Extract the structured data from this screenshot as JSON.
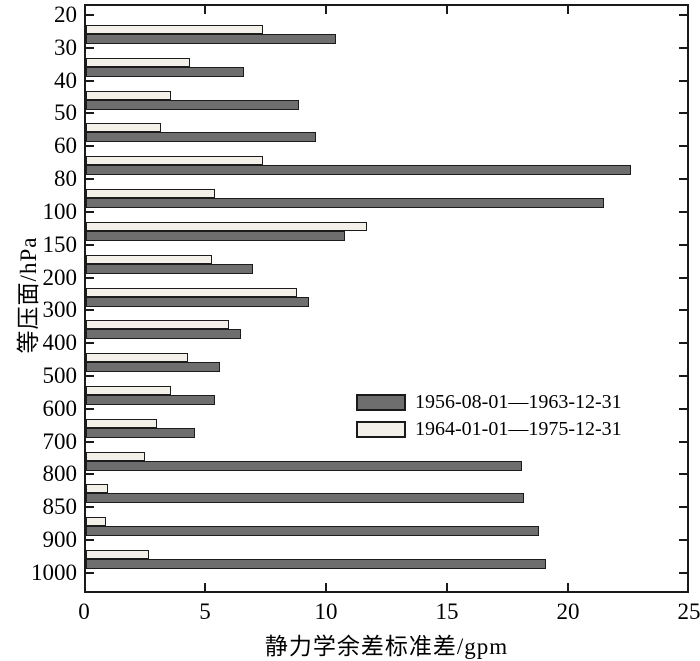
{
  "figure": {
    "background": "#ffffff",
    "frame_color": "#1a1a1a",
    "text_color": "#000000"
  },
  "chart_data": {
    "type": "bar",
    "orientation": "horizontal",
    "title": "",
    "xlabel": "静力学余差标准差/gpm",
    "ylabel": "等压面/hPa",
    "xlim": [
      0,
      25
    ],
    "x_tick_labels": [
      "0",
      "5",
      "10",
      "15",
      "20",
      "25"
    ],
    "x_tick_values": [
      0,
      5,
      10,
      15,
      20,
      25
    ],
    "y_tick_labels": [
      "20",
      "30",
      "40",
      "50",
      "60",
      "80",
      "100",
      "150",
      "200",
      "300",
      "400",
      "500",
      "600",
      "700",
      "800",
      "850",
      "900",
      "1000"
    ],
    "bar_placement": "between-ticks",
    "grid": false,
    "legend_position": "inside-center-right",
    "series": [
      {
        "name": "1956-08-01—1963-12-31",
        "color": "#6e6e6e",
        "values": [
          10.4,
          6.6,
          8.9,
          9.6,
          22.6,
          21.5,
          10.8,
          7.0,
          9.3,
          6.5,
          5.6,
          5.4,
          4.6,
          18.1,
          18.2,
          18.8,
          19.1
        ]
      },
      {
        "name": "1964-01-01—1975-12-31",
        "color": "#f3efe9",
        "values": [
          7.4,
          4.4,
          3.6,
          3.2,
          7.4,
          5.4,
          11.7,
          5.3,
          8.8,
          6.0,
          4.3,
          3.6,
          3.0,
          2.5,
          1.0,
          0.9,
          2.7
        ]
      }
    ]
  }
}
